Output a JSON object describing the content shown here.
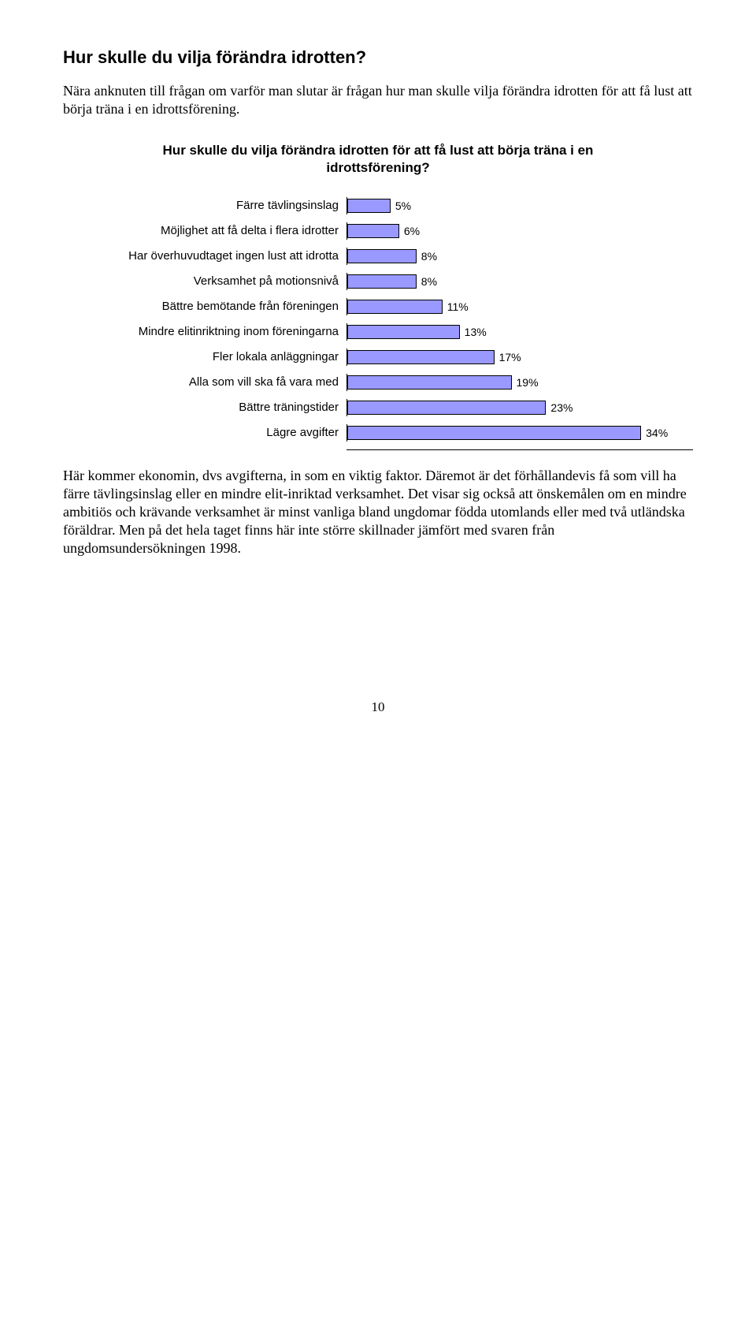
{
  "heading": "Hur skulle du vilja förändra idrotten?",
  "intro_para": "Nära anknuten till frågan om varför man slutar är frågan hur man skulle vilja förändra idrotten för att få lust att börja träna i en idrottsförening.",
  "chart": {
    "title": "Hur skulle du vilja förändra idrotten för att få lust att börja träna i en idrottsförening?",
    "bar_fill": "#9999ff",
    "bar_stroke": "#000000",
    "xmax": 40,
    "items": [
      {
        "label": "Färre tävlingsinslag",
        "value": 5,
        "pct": "5%"
      },
      {
        "label": "Möjlighet att få delta i flera idrotter",
        "value": 6,
        "pct": "6%"
      },
      {
        "label": "Har överhuvudtaget ingen lust att idrotta",
        "value": 8,
        "pct": "8%"
      },
      {
        "label": "Verksamhet på motionsnivå",
        "value": 8,
        "pct": "8%"
      },
      {
        "label": "Bättre bemötande från föreningen",
        "value": 11,
        "pct": "11%"
      },
      {
        "label": "Mindre elitinriktning inom föreningarna",
        "value": 13,
        "pct": "13%"
      },
      {
        "label": "Fler lokala anläggningar",
        "value": 17,
        "pct": "17%"
      },
      {
        "label": "Alla som vill ska få vara med",
        "value": 19,
        "pct": "19%"
      },
      {
        "label": "Bättre träningstider",
        "value": 23,
        "pct": "23%"
      },
      {
        "label": "Lägre avgifter",
        "value": 34,
        "pct": "34%"
      }
    ]
  },
  "body_para": "Här kommer ekonomin, dvs avgifterna, in som en viktig faktor. Däremot är det förhållandevis få som vill ha färre tävlingsinslag eller en mindre elit-inriktad verksamhet. Det visar sig också att önskemålen om en mindre ambitiös och krävande verksamhet är minst vanliga bland ungdomar födda utomlands eller med två utländska föräldrar. Men på det hela taget finns här inte större skillnader jämfört med svaren från ungdomsundersökningen 1998.",
  "page_number": "10"
}
